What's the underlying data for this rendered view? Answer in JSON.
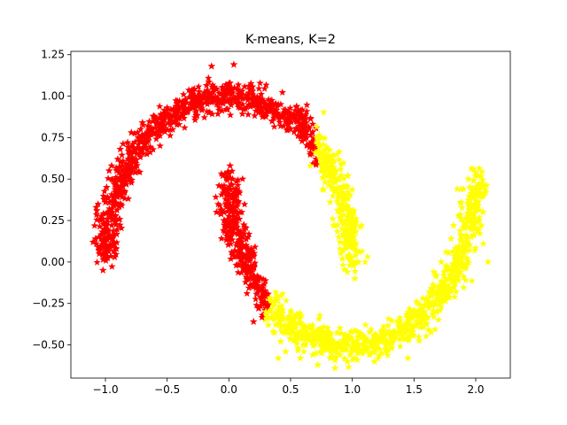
{
  "chart_data": {
    "type": "scatter",
    "title": "K-means, K=2",
    "xlabel": "",
    "ylabel": "",
    "xlim": [
      -1.28,
      2.28
    ],
    "ylim": [
      -0.7,
      1.27
    ],
    "x_ticks": [
      -1.0,
      -0.5,
      0.0,
      0.5,
      1.0,
      1.5,
      2.0
    ],
    "x_tick_labels": [
      "−1.0",
      "−0.5",
      "0.0",
      "0.5",
      "1.0",
      "1.5",
      "2.0"
    ],
    "y_ticks": [
      1.25,
      1.0,
      0.75,
      0.5,
      0.25,
      0.0,
      -0.25,
      -0.5
    ],
    "y_tick_labels": [
      "1.25",
      "1.00",
      "0.75",
      "0.50",
      "0.25",
      "0.00",
      "−0.25",
      "−0.50"
    ],
    "grid": false,
    "legend": "none",
    "marker": "star",
    "series": [
      {
        "color": "#ff0000",
        "points": [
          [
            -1.05,
            0.05
          ],
          [
            -1.02,
            -0.05
          ],
          [
            -1.08,
            0.14
          ],
          [
            -1.04,
            0.25
          ],
          [
            -1.07,
            0.31
          ],
          [
            -1.0,
            0.36
          ],
          [
            -0.99,
            0.45
          ],
          [
            -0.97,
            0.55
          ],
          [
            -0.95,
            0.58
          ],
          [
            -0.9,
            0.62
          ],
          [
            -0.88,
            0.68
          ],
          [
            -0.82,
            0.72
          ],
          [
            -0.79,
            0.78
          ],
          [
            -0.74,
            0.78
          ],
          [
            -0.7,
            0.84
          ],
          [
            -0.65,
            0.82
          ],
          [
            -0.61,
            0.88
          ],
          [
            -0.55,
            0.89
          ],
          [
            -0.5,
            0.93
          ],
          [
            -0.45,
            0.92
          ],
          [
            -0.4,
            0.97
          ],
          [
            -0.35,
            0.98
          ],
          [
            -0.3,
            1.0
          ],
          [
            -0.25,
            1.0
          ],
          [
            -0.2,
            1.02
          ],
          [
            -0.14,
            1.18
          ],
          [
            -0.1,
            1.04
          ],
          [
            -0.05,
            1.0
          ],
          [
            0.0,
            1.05
          ],
          [
            0.04,
            1.19
          ],
          [
            0.05,
            0.99
          ],
          [
            0.1,
            1.01
          ],
          [
            0.15,
            1.0
          ],
          [
            0.2,
            0.98
          ],
          [
            0.25,
            0.97
          ],
          [
            0.3,
            0.95
          ],
          [
            0.35,
            0.92
          ],
          [
            0.4,
            0.95
          ],
          [
            0.45,
            0.9
          ],
          [
            0.5,
            0.86
          ],
          [
            0.55,
            0.8
          ],
          [
            0.62,
            0.76
          ],
          [
            0.68,
            0.7
          ],
          [
            -1.1,
            0.12
          ],
          [
            -1.02,
            0.18
          ],
          [
            -0.93,
            0.4
          ],
          [
            -0.86,
            0.52
          ],
          [
            -0.78,
            0.63
          ],
          [
            -0.68,
            0.72
          ],
          [
            -0.58,
            0.78
          ],
          [
            -0.48,
            0.86
          ],
          [
            -0.36,
            0.91
          ],
          [
            -0.22,
            0.95
          ],
          [
            -0.08,
            0.97
          ],
          [
            0.12,
            0.92
          ],
          [
            0.28,
            0.88
          ],
          [
            0.42,
            0.82
          ],
          [
            0.56,
            0.76
          ],
          [
            0.66,
            0.66
          ],
          [
            -0.08,
            0.46
          ],
          [
            -0.05,
            0.52
          ],
          [
            0.01,
            0.58
          ],
          [
            0.03,
            0.5
          ],
          [
            -0.02,
            0.4
          ],
          [
            0.02,
            0.32
          ],
          [
            0.06,
            0.43
          ],
          [
            -0.04,
            0.25
          ],
          [
            0.05,
            0.22
          ],
          [
            0.09,
            0.3
          ],
          [
            0.08,
            0.12
          ],
          [
            0.1,
            0.02
          ],
          [
            0.14,
            0.1
          ],
          [
            0.16,
            -0.06
          ],
          [
            0.2,
            -0.03
          ],
          [
            0.22,
            -0.14
          ],
          [
            0.26,
            -0.1
          ],
          [
            0.28,
            -0.2
          ],
          [
            0.24,
            -0.28
          ],
          [
            0.2,
            -0.36
          ],
          [
            0.3,
            -0.28
          ],
          [
            0.12,
            -0.02
          ],
          [
            0.18,
            0.08
          ],
          [
            -0.1,
            0.3
          ],
          [
            0.0,
            0.15
          ],
          [
            0.06,
            -0.02
          ]
        ]
      },
      {
        "color": "#ffff00",
        "points": [
          [
            0.75,
            0.75
          ],
          [
            0.7,
            0.66
          ],
          [
            0.66,
            0.58
          ],
          [
            0.74,
            0.62
          ],
          [
            0.8,
            0.55
          ],
          [
            0.78,
            0.48
          ],
          [
            0.84,
            0.44
          ],
          [
            0.82,
            0.36
          ],
          [
            0.88,
            0.31
          ],
          [
            0.86,
            0.22
          ],
          [
            0.92,
            0.2
          ],
          [
            0.9,
            0.12
          ],
          [
            0.95,
            0.1
          ],
          [
            0.92,
            0.02
          ],
          [
            0.98,
            -0.02
          ],
          [
            1.02,
            -0.1
          ],
          [
            1.05,
            0.0
          ],
          [
            0.96,
            -0.06
          ],
          [
            0.3,
            -0.3
          ],
          [
            0.32,
            -0.38
          ],
          [
            0.36,
            -0.42
          ],
          [
            0.42,
            -0.48
          ],
          [
            0.5,
            -0.46
          ],
          [
            0.56,
            -0.52
          ],
          [
            0.62,
            -0.5
          ],
          [
            0.68,
            -0.56
          ],
          [
            0.75,
            -0.55
          ],
          [
            0.82,
            -0.58
          ],
          [
            0.9,
            -0.56
          ],
          [
            0.96,
            -0.6
          ],
          [
            1.02,
            -0.58
          ],
          [
            1.08,
            -0.54
          ],
          [
            1.14,
            -0.56
          ],
          [
            1.2,
            -0.52
          ],
          [
            1.28,
            -0.49
          ],
          [
            1.34,
            -0.46
          ],
          [
            1.42,
            -0.4
          ],
          [
            1.45,
            -0.34
          ],
          [
            1.48,
            -0.3
          ],
          [
            1.55,
            -0.26
          ],
          [
            1.6,
            -0.22
          ],
          [
            1.64,
            -0.16
          ],
          [
            1.68,
            -0.08
          ],
          [
            1.72,
            0.0
          ],
          [
            1.76,
            0.06
          ],
          [
            1.8,
            0.14
          ],
          [
            1.82,
            0.22
          ],
          [
            1.86,
            0.28
          ],
          [
            1.88,
            0.36
          ],
          [
            1.9,
            0.44
          ],
          [
            1.94,
            0.5
          ],
          [
            1.98,
            0.56
          ],
          [
            2.02,
            0.52
          ],
          [
            2.05,
            0.46
          ],
          [
            2.08,
            0.42
          ],
          [
            2.06,
            0.3
          ],
          [
            2.02,
            0.2
          ],
          [
            2.1,
            0.0
          ],
          [
            1.93,
            0.12
          ],
          [
            1.98,
            0.25
          ],
          [
            1.85,
            0.05
          ],
          [
            1.75,
            -0.12
          ],
          [
            1.58,
            -0.3
          ],
          [
            1.45,
            -0.58
          ],
          [
            1.32,
            -0.52
          ],
          [
            1.18,
            -0.6
          ],
          [
            0.86,
            -0.64
          ],
          [
            0.72,
            -0.62
          ],
          [
            0.58,
            -0.58
          ],
          [
            0.46,
            -0.54
          ],
          [
            0.4,
            -0.58
          ],
          [
            0.54,
            -0.4
          ],
          [
            0.66,
            -0.44
          ],
          [
            0.8,
            -0.48
          ],
          [
            0.96,
            -0.48
          ],
          [
            1.1,
            -0.46
          ],
          [
            1.24,
            -0.42
          ],
          [
            1.38,
            -0.36
          ],
          [
            1.52,
            -0.24
          ],
          [
            1.66,
            -0.06
          ]
        ]
      }
    ]
  }
}
